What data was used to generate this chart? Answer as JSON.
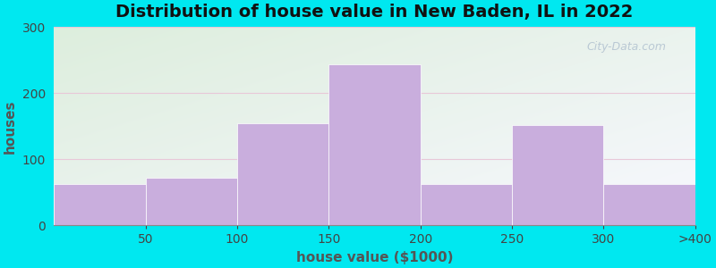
{
  "title": "Distribution of house value in New Baden, IL in 2022",
  "xlabel": "house value ($1000)",
  "ylabel": "houses",
  "tick_labels": [
    "50",
    "100",
    "150",
    "200",
    "250",
    "300",
    ">400"
  ],
  "values": [
    62,
    72,
    155,
    243,
    63,
    152,
    62
  ],
  "bar_color": "#c9aedd",
  "ylim": [
    0,
    300
  ],
  "yticks": [
    0,
    100,
    200,
    300
  ],
  "bg_outer": "#00e8f0",
  "bg_inner_top_left": "#ddeedd",
  "bg_inner_bottom_right": "#f8f8ff",
  "grid_color": "#e8c8d8",
  "title_fontsize": 14,
  "axis_label_fontsize": 11,
  "tick_fontsize": 10,
  "watermark_text": "City-Data.com",
  "figsize": [
    8.0,
    3.0
  ],
  "dpi": 100
}
